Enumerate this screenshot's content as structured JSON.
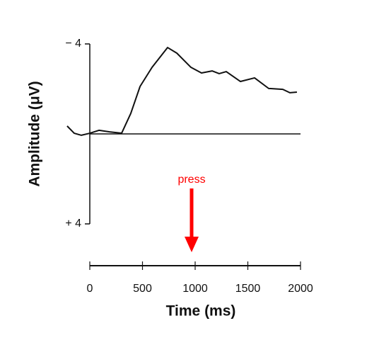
{
  "chart_data": {
    "type": "line",
    "xlabel": "Time (ms)",
    "ylabel": "Amplitude (μV)",
    "x": [
      -215,
      -148,
      -80,
      0,
      87,
      188,
      302,
      389,
      477,
      591,
      738,
      826,
      960,
      1060,
      1161,
      1228,
      1295,
      1430,
      1564,
      1698,
      1832,
      1899,
      1966
    ],
    "series": [
      {
        "color": "#111111",
        "values": [
          -0.35,
          -0.03,
          0.06,
          -0.03,
          -0.16,
          -0.09,
          -0.03,
          -0.91,
          -2.11,
          -2.96,
          -3.84,
          -3.59,
          -2.96,
          -2.71,
          -2.8,
          -2.68,
          -2.77,
          -2.33,
          -2.49,
          -2.02,
          -1.98,
          -1.83,
          -1.86
        ]
      }
    ],
    "xlim": [
      0,
      2000
    ],
    "xticks": [
      0,
      500,
      1000,
      1500,
      2000
    ],
    "ylim": [
      -4,
      4
    ],
    "yticks": [
      {
        "value": -4,
        "label": "− 4"
      },
      {
        "value": 4,
        "label": "+ 4"
      }
    ],
    "y_inverted": true,
    "zero_line": true,
    "annotations": [
      {
        "text": "press",
        "x": 1000,
        "color": "#ff0000"
      }
    ]
  }
}
